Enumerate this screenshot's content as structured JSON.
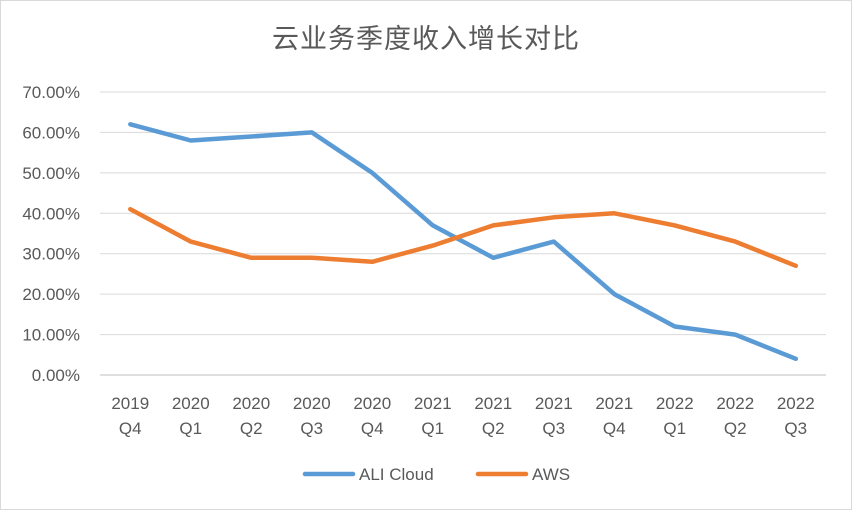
{
  "chart_data": {
    "type": "line",
    "title": "云业务季度收入增长对比",
    "categories": [
      [
        "2019",
        "Q4"
      ],
      [
        "2020",
        "Q1"
      ],
      [
        "2020",
        "Q2"
      ],
      [
        "2020",
        "Q3"
      ],
      [
        "2020",
        "Q4"
      ],
      [
        "2021",
        "Q1"
      ],
      [
        "2021",
        "Q2"
      ],
      [
        "2021",
        "Q3"
      ],
      [
        "2021",
        "Q4"
      ],
      [
        "2022",
        "Q1"
      ],
      [
        "2022",
        "Q2"
      ],
      [
        "2022",
        "Q3"
      ]
    ],
    "y_ticks": [
      "0.00%",
      "10.00%",
      "20.00%",
      "30.00%",
      "40.00%",
      "50.00%",
      "60.00%",
      "70.00%"
    ],
    "ylim": [
      0,
      0.7
    ],
    "grid": true,
    "legend_position": "bottom",
    "series": [
      {
        "name": "ALI Cloud",
        "color": "#5B9BD5",
        "values": [
          0.62,
          0.58,
          0.59,
          0.6,
          0.5,
          0.37,
          0.29,
          0.33,
          0.2,
          0.12,
          0.1,
          0.04
        ]
      },
      {
        "name": "AWS",
        "color": "#ED7D31",
        "values": [
          0.41,
          0.33,
          0.29,
          0.29,
          0.28,
          0.32,
          0.37,
          0.39,
          0.4,
          0.37,
          0.33,
          0.27
        ]
      }
    ]
  }
}
